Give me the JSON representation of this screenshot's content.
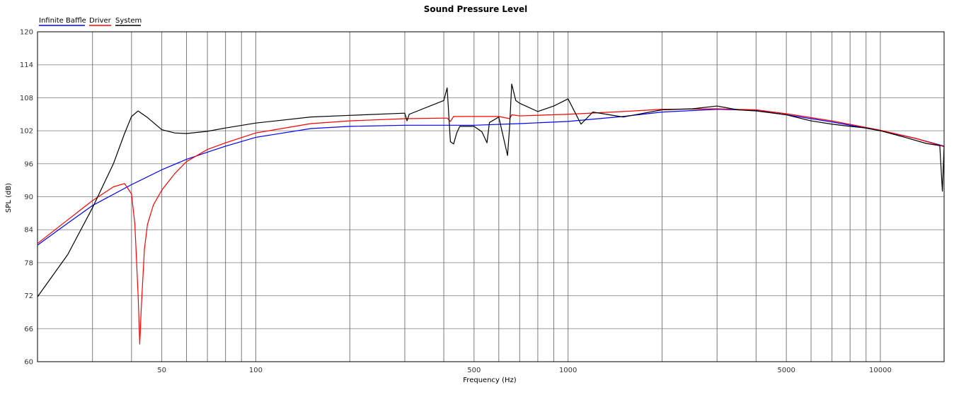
{
  "chart_data": {
    "type": "line",
    "title": "Sound Pressure Level",
    "xlabel": "Frequency (Hz)",
    "ylabel": "SPL (dB)",
    "xscale": "log",
    "xlim": [
      20,
      16000
    ],
    "ylim": [
      60,
      120
    ],
    "yticks": [
      60,
      66,
      72,
      78,
      84,
      90,
      96,
      102,
      108,
      114,
      120
    ],
    "xtick_labels": [
      {
        "x": 50,
        "label": "50"
      },
      {
        "x": 100,
        "label": "100"
      },
      {
        "x": 500,
        "label": "500"
      },
      {
        "x": 1000,
        "label": "1000"
      },
      {
        "x": 5000,
        "label": "5000"
      },
      {
        "x": 10000,
        "label": "10000"
      }
    ],
    "grid": true,
    "legend_position": "top-left",
    "series": [
      {
        "name": "Infinite Baffle",
        "color": "#0000ff",
        "x": [
          20,
          25,
          30,
          40,
          50,
          60,
          70,
          80,
          100,
          150,
          200,
          300,
          400,
          500,
          700,
          1000,
          1500,
          2000,
          3000,
          4000,
          5000,
          7000,
          10000,
          13000,
          16000
        ],
        "y": [
          81.2,
          85.2,
          88.4,
          92.2,
          94.9,
          96.8,
          98.1,
          99.2,
          100.8,
          102.4,
          102.8,
          103.0,
          103.0,
          103.0,
          103.3,
          103.7,
          104.6,
          105.4,
          105.9,
          105.7,
          104.9,
          103.6,
          102.0,
          100.6,
          99.2
        ]
      },
      {
        "name": "Driver",
        "color": "#ff0000",
        "x": [
          20,
          25,
          30,
          35,
          38,
          40,
          41,
          42,
          42.5,
          43,
          44,
          45,
          47,
          50,
          55,
          60,
          70,
          80,
          100,
          150,
          200,
          300,
          410,
          420,
          430,
          600,
          650,
          660,
          700,
          1000,
          1500,
          2000,
          3000,
          4000,
          5000,
          7000,
          10000,
          13000,
          16000
        ],
        "y": [
          81.5,
          85.8,
          89.3,
          91.8,
          92.4,
          90.5,
          85.0,
          72.0,
          63.2,
          70.0,
          80.5,
          85.0,
          88.5,
          91.2,
          94.2,
          96.4,
          98.6,
          99.8,
          101.6,
          103.3,
          103.8,
          104.2,
          104.3,
          103.7,
          104.6,
          104.6,
          104.2,
          104.9,
          104.7,
          105.0,
          105.5,
          105.9,
          106.0,
          105.8,
          105.1,
          103.8,
          102.1,
          100.6,
          99.1
        ]
      },
      {
        "name": "System",
        "color": "#000000",
        "x": [
          20,
          25,
          30,
          35,
          38,
          40,
          42,
          45,
          50,
          55,
          60,
          70,
          80,
          100,
          150,
          200,
          300,
          305,
          310,
          400,
          410,
          420,
          430,
          440,
          450,
          500,
          530,
          550,
          560,
          600,
          640,
          650,
          660,
          680,
          700,
          800,
          900,
          1000,
          1100,
          1200,
          1500,
          2000,
          2500,
          3000,
          3500,
          4000,
          5000,
          6000,
          7000,
          8000,
          9000,
          10000,
          12000,
          14000,
          15500,
          15800,
          16000
        ],
        "y": [
          71.8,
          79.5,
          88.0,
          96.0,
          101.5,
          104.6,
          105.6,
          104.4,
          102.2,
          101.6,
          101.5,
          101.9,
          102.5,
          103.4,
          104.5,
          104.8,
          105.2,
          103.8,
          105.0,
          107.5,
          109.8,
          100.0,
          99.6,
          101.6,
          102.8,
          102.8,
          101.8,
          99.8,
          103.5,
          104.5,
          97.5,
          102.8,
          110.5,
          107.5,
          107.0,
          105.5,
          106.5,
          107.8,
          103.2,
          105.4,
          104.5,
          105.8,
          106.0,
          106.5,
          105.8,
          105.6,
          104.9,
          103.8,
          103.2,
          102.8,
          102.5,
          102.0,
          100.8,
          99.7,
          99.3,
          91.0,
          99.2
        ]
      }
    ]
  }
}
